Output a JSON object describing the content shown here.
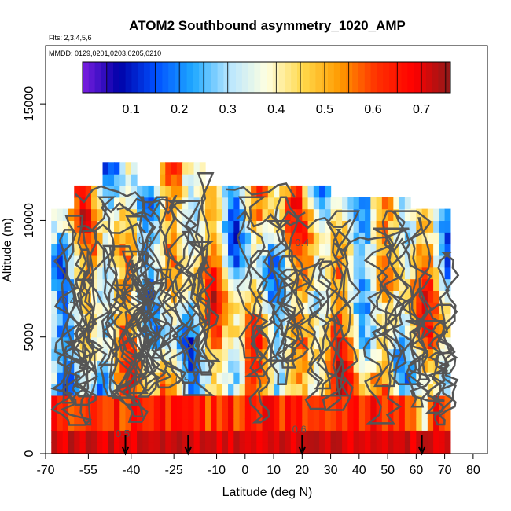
{
  "chart_data": {
    "type": "heatmap",
    "title": "ATOM2 Southbound asymmetry_1020_AMP",
    "flights_label": "Flts: 2,3,4,5,6",
    "dates_label": "MMDD: 0129,0201,0203,0205,0210",
    "xlabel": "Latitude (deg N)",
    "ylabel": "Altitude (m)",
    "xlim": [
      -70,
      85
    ],
    "ylim": [
      0,
      17500
    ],
    "x_ticks": [
      -70,
      -55,
      -40,
      -25,
      -10,
      0,
      10,
      20,
      30,
      40,
      50,
      60,
      70,
      80
    ],
    "y_ticks": [
      0,
      5000,
      10000,
      15000
    ],
    "colorbar": {
      "min": 0.0,
      "max": 0.76,
      "ticks": [
        0.1,
        0.2,
        0.3,
        0.4,
        0.5,
        0.6,
        0.7
      ],
      "colors": [
        "#7a1fe0",
        "#0000a8",
        "#0050ff",
        "#1ea8ff",
        "#b8e6ff",
        "#ffffe0",
        "#ffd84a",
        "#ff9a00",
        "#ff3000",
        "#ff0000",
        "#8b1a1a"
      ]
    },
    "contour_labels": [
      {
        "text": "0.4",
        "lat": -35,
        "alt": 9000
      },
      {
        "text": "0.4",
        "lat": 20,
        "alt": 8900
      },
      {
        "text": "0.3",
        "lat": -37,
        "alt": 7200
      },
      {
        "text": "0.4",
        "lat": -62,
        "alt": 6400
      },
      {
        "text": "0.5",
        "lat": -22,
        "alt": 3000
      },
      {
        "text": "0.6",
        "lat": 19,
        "alt": 900
      },
      {
        "text": "0.5",
        "lat": -43,
        "alt": 700
      }
    ],
    "arrows_lat": [
      -42,
      -20,
      20,
      62
    ],
    "lat_range_data": [
      -68,
      72
    ]
  }
}
